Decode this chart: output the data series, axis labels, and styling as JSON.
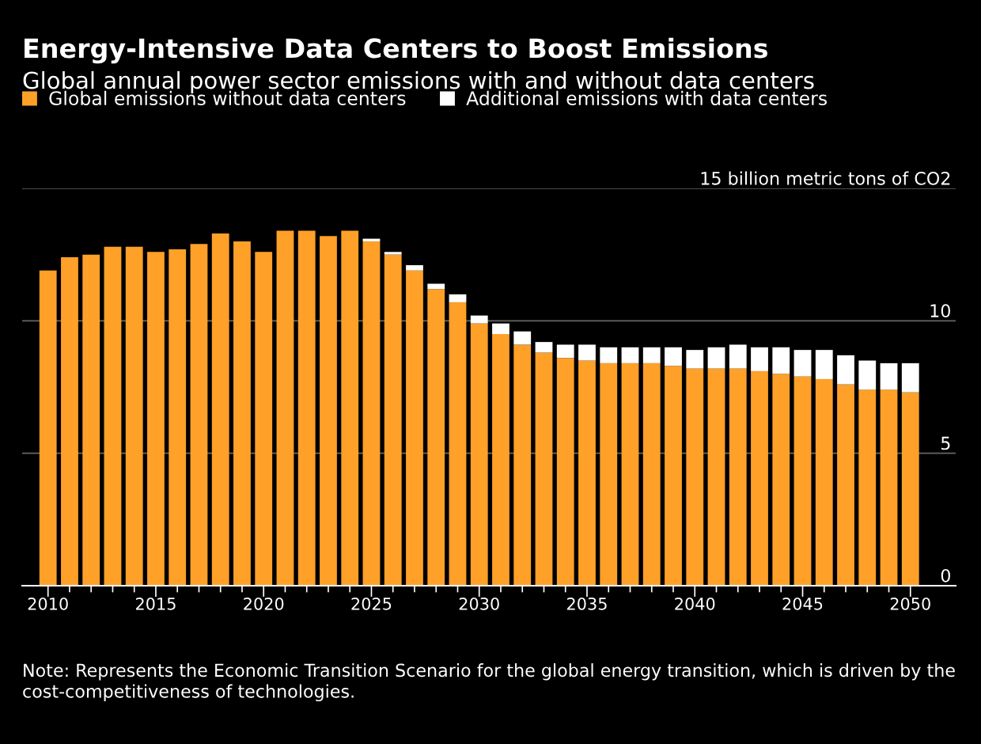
{
  "chart_data": {
    "type": "bar",
    "stacked": true,
    "title": "Energy-Intensive Data Centers to Boost Emissions",
    "subtitle": "Global annual power sector emissions with and without data centers",
    "categories": [
      "2010",
      null,
      null,
      null,
      null,
      "2015",
      null,
      null,
      null,
      null,
      "2020",
      null,
      null,
      null,
      null,
      "2025",
      null,
      null,
      null,
      null,
      "2030",
      null,
      null,
      null,
      null,
      "2035",
      null,
      null,
      null,
      null,
      "2040",
      null,
      null,
      null,
      null,
      "2045",
      null,
      null,
      null,
      null,
      "2050"
    ],
    "series": [
      {
        "name": "Global emissions without data centers",
        "color": "#ffa028",
        "values": [
          11.9,
          12.4,
          12.5,
          12.8,
          12.8,
          12.6,
          12.7,
          12.9,
          13.3,
          13.0,
          12.6,
          13.4,
          13.4,
          13.2,
          13.4,
          13.0,
          12.5,
          11.9,
          11.2,
          10.7,
          9.9,
          9.5,
          9.1,
          8.8,
          8.6,
          8.5,
          8.4,
          8.4,
          8.4,
          8.3,
          8.2,
          8.2,
          8.2,
          8.1,
          8.0,
          7.9,
          7.8,
          7.6,
          7.4,
          7.4,
          7.3
        ]
      },
      {
        "name": "Additional emissions with data centers",
        "color": "#ffffff",
        "values": [
          0,
          0,
          0,
          0,
          0,
          0,
          0,
          0,
          0,
          0,
          0,
          0,
          0,
          0,
          0,
          0.1,
          0.1,
          0.2,
          0.2,
          0.3,
          0.3,
          0.4,
          0.5,
          0.4,
          0.5,
          0.6,
          0.6,
          0.6,
          0.6,
          0.7,
          0.7,
          0.8,
          0.9,
          0.9,
          1.0,
          1.0,
          1.1,
          1.1,
          1.1,
          1.0,
          1.1
        ]
      }
    ],
    "ylim": [
      0,
      15
    ],
    "yticks": [
      0,
      5,
      10,
      {
        "value": 15,
        "label": "15 billion metric tons of CO2"
      }
    ],
    "grid": "y",
    "legend": "top left",
    "annotations": [
      "Note: Represents the Economic Transition Scenario for the global energy transition, which is driven by the cost-competitiveness of technologies."
    ]
  }
}
